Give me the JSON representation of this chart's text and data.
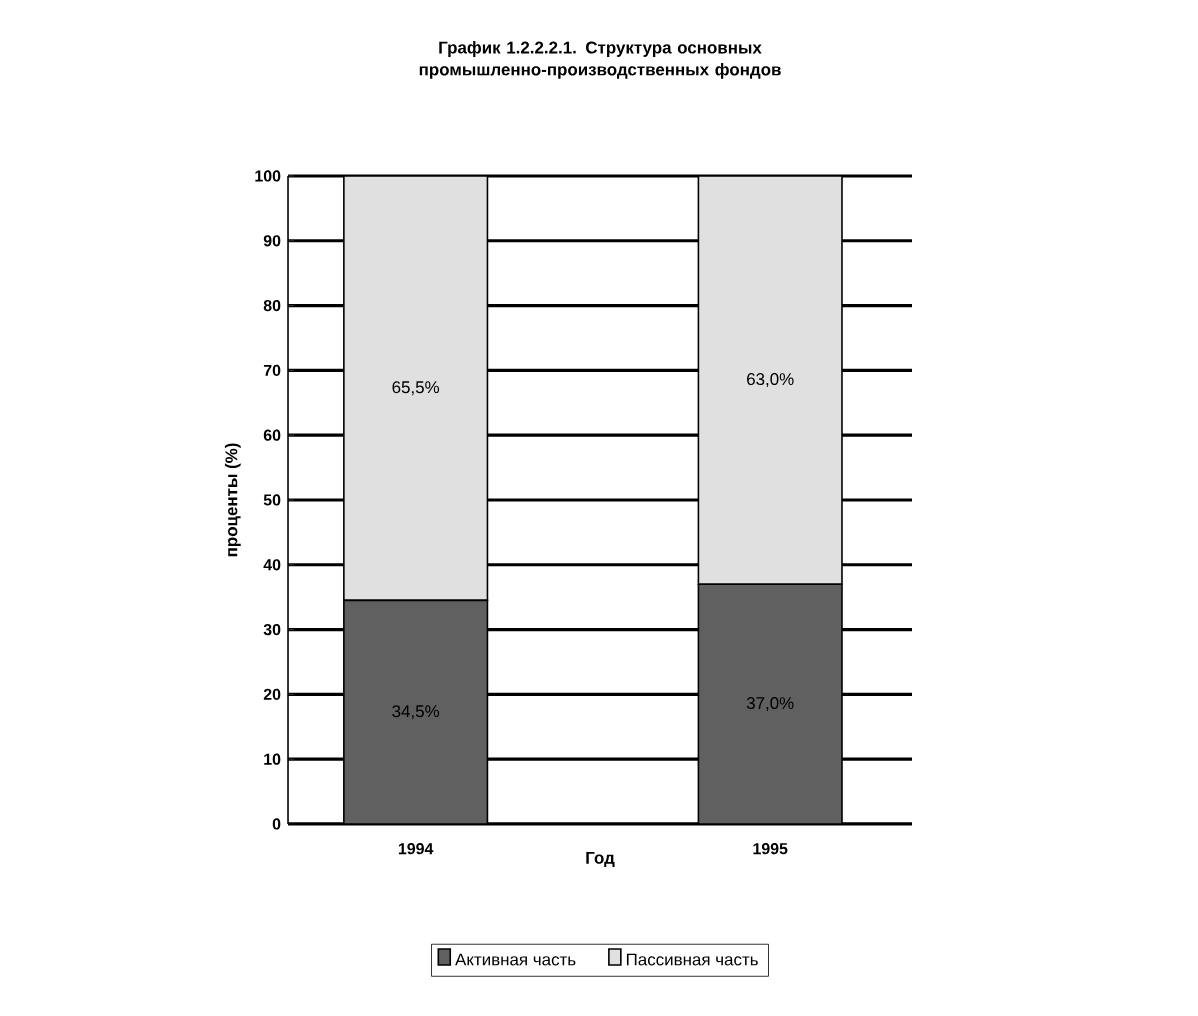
{
  "chart_data": {
    "type": "bar",
    "stacked": true,
    "title": "График 1.2.2.2.1.  Структура основных промышленно-производственных фондов",
    "xlabel": "Год",
    "ylabel": "проценты (%)",
    "categories": [
      "1994",
      "1995"
    ],
    "series": [
      {
        "name": "Активная часть",
        "color": "#606060",
        "values": [
          34.5,
          37.0
        ],
        "value_labels": [
          "34,5%",
          "37,0%"
        ]
      },
      {
        "name": "Пассивная часть",
        "color": "#e0e0e0",
        "values": [
          65.5,
          63.0
        ],
        "value_labels": [
          "65,5%",
          "63,0%"
        ]
      }
    ],
    "ylim": [
      0,
      100
    ],
    "yticks": [
      0,
      10,
      20,
      30,
      40,
      50,
      60,
      70,
      80,
      90,
      100
    ],
    "grid": "y",
    "legend": "bottom"
  }
}
